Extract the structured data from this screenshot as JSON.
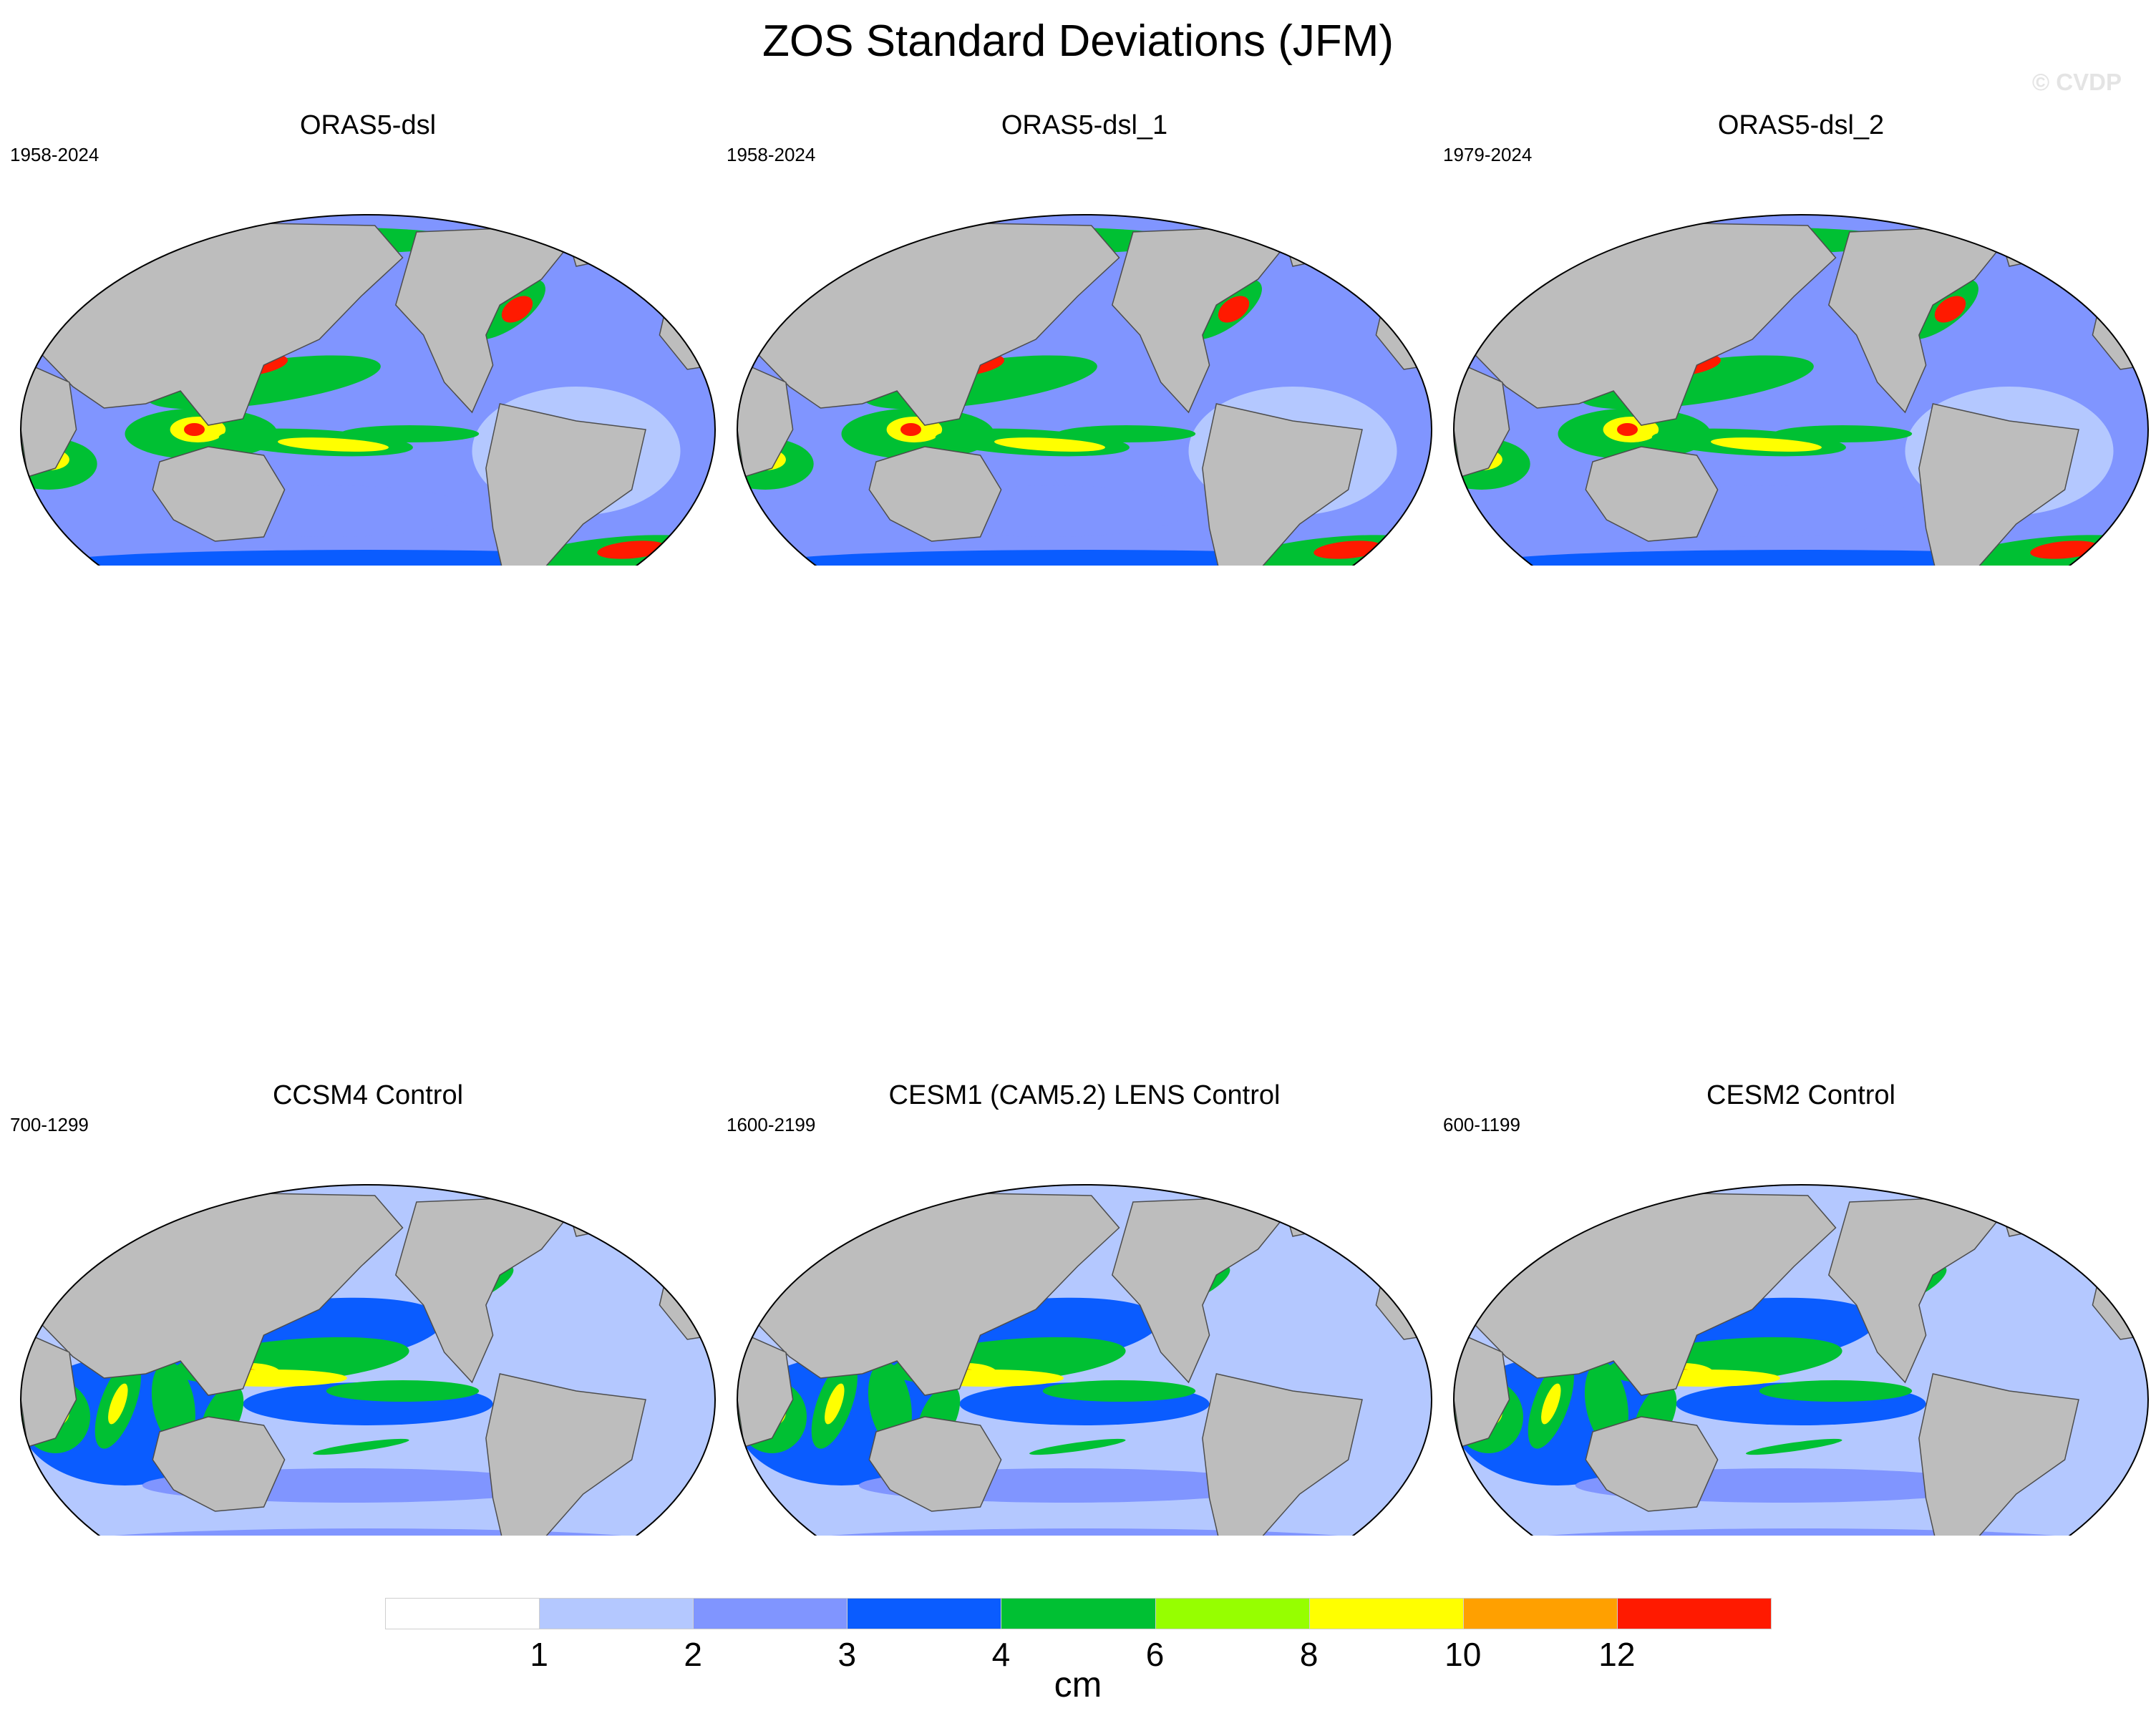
{
  "title": "ZOS Standard Deviations (JFM)",
  "watermark": "© CVDP",
  "panels": [
    {
      "name": "ORAS5-dsl",
      "period": "1958-2024",
      "variant": "obs"
    },
    {
      "name": "ORAS5-dsl_1",
      "period": "1958-2024",
      "variant": "obs"
    },
    {
      "name": "ORAS5-dsl_2",
      "period": "1979-2024",
      "variant": "obs"
    },
    {
      "name": "CCSM4 Control",
      "period": "700-1299",
      "variant": "model"
    },
    {
      "name": "CESM1 (CAM5.2) LENS Control",
      "period": "1600-2199",
      "variant": "model"
    },
    {
      "name": "CESM2 Control",
      "period": "600-1199",
      "variant": "model"
    }
  ],
  "colorbar": {
    "units": "cm",
    "levels": [
      "1",
      "2",
      "3",
      "4",
      "6",
      "8",
      "10",
      "12"
    ],
    "colors": [
      "#ffffff",
      "#b4c8ff",
      "#8095ff",
      "#0a5cff",
      "#00c033",
      "#96ff00",
      "#ffff00",
      "#ffa000",
      "#ff1a00"
    ]
  },
  "map_colors": {
    "land": "#bdbdbd",
    "coastline": "#4d4d4d"
  }
}
